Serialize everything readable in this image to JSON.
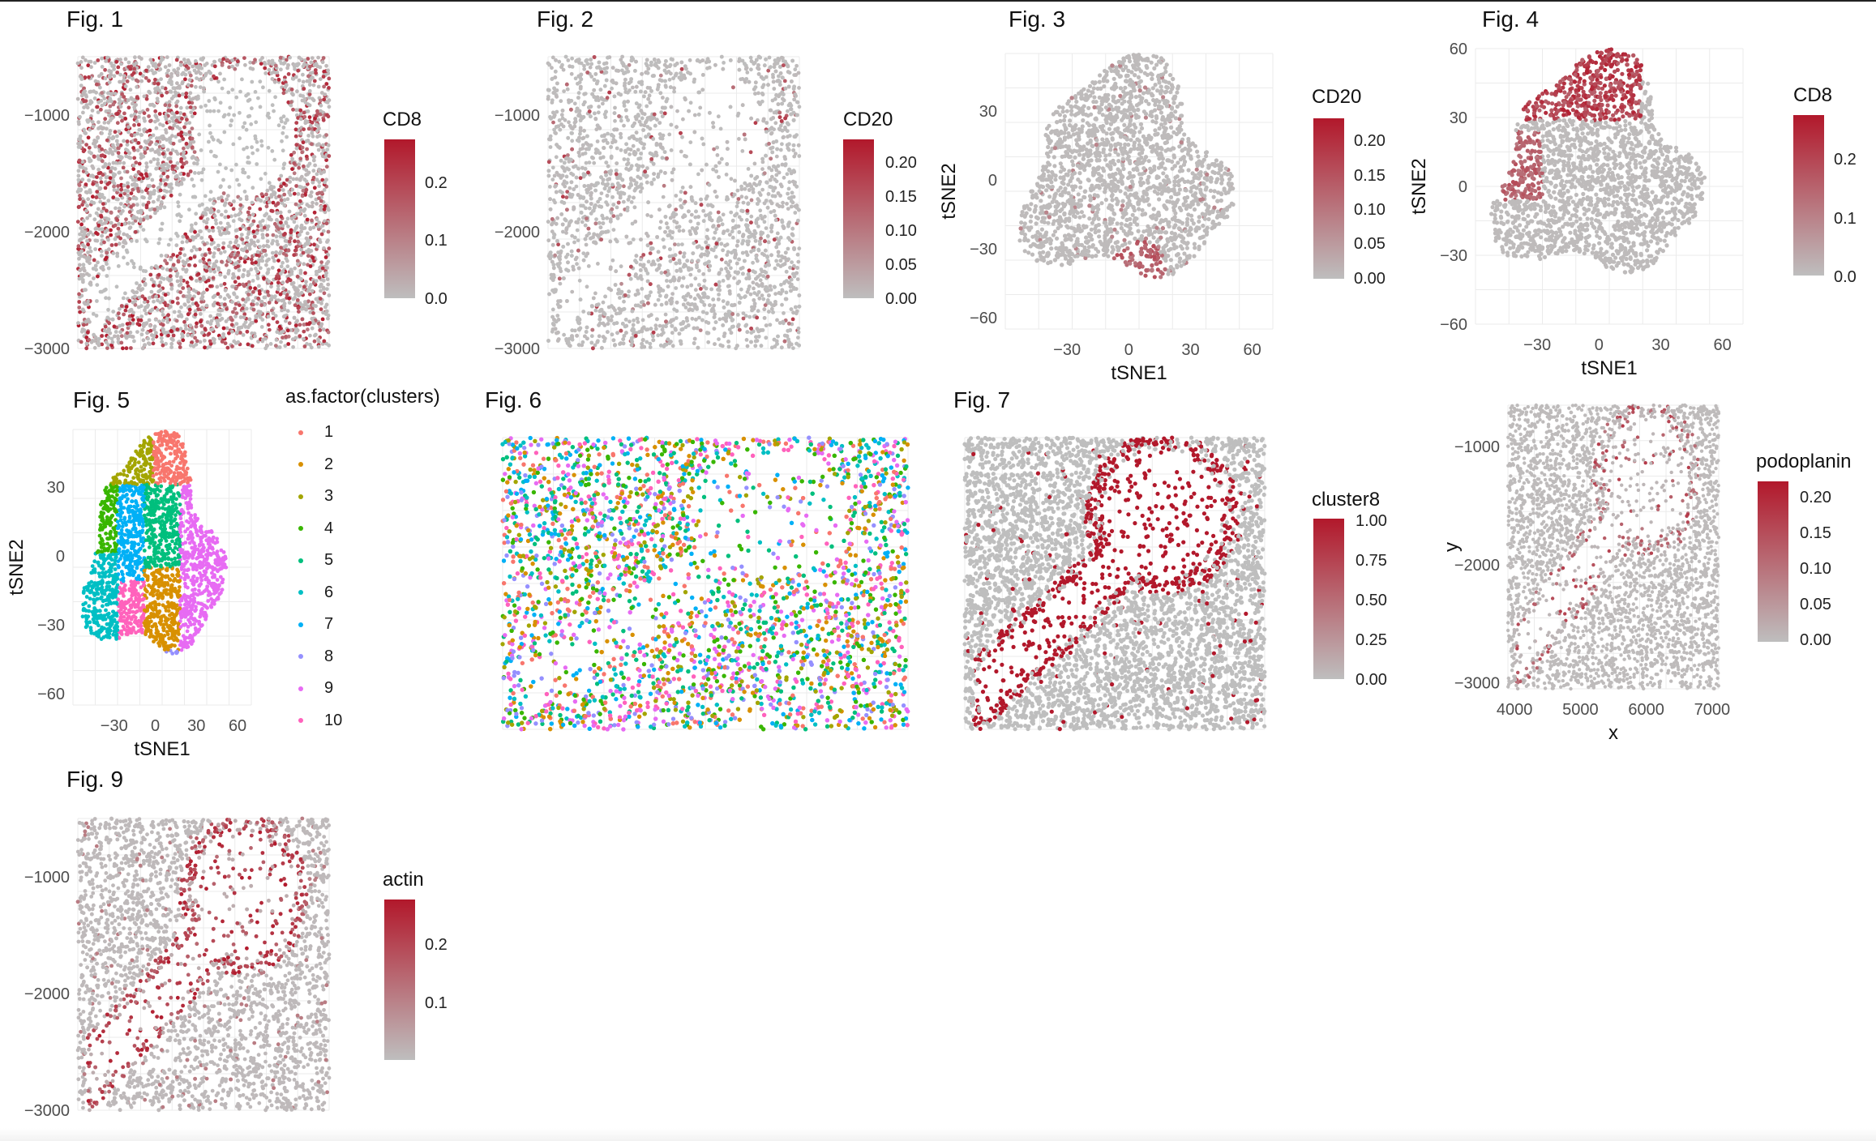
{
  "colors": {
    "low": "#bebebe",
    "high": "#b2182b",
    "grid": "#ebebeb",
    "axis_text": "#4d4d4d"
  },
  "cluster_palette": [
    "#F8766D",
    "#D89000",
    "#A3A500",
    "#39B600",
    "#00BF7D",
    "#00BFC4",
    "#00B0F6",
    "#9590FF",
    "#E76BF3",
    "#FF62BC"
  ],
  "chart_data": [
    {
      "id": "fig1",
      "label": "Fig. 1",
      "type": "scatter",
      "kind": "spatial",
      "fill": "CD8",
      "xlabel": "",
      "ylabel": "",
      "y_ticks": [
        "-1000",
        "-2000",
        "-3000"
      ],
      "x_ticks": [],
      "legend": {
        "title": "CD8",
        "ticks": [
          "0.2",
          "0.1",
          "0.0"
        ],
        "range": [
          0,
          0.28
        ]
      }
    },
    {
      "id": "fig2",
      "label": "Fig. 2",
      "type": "scatter",
      "kind": "spatial",
      "fill": "CD20",
      "xlabel": "",
      "ylabel": "",
      "y_ticks": [
        "-1000",
        "-2000",
        "-3000"
      ],
      "x_ticks": [],
      "legend": {
        "title": "CD20",
        "ticks": [
          "0.20",
          "0.15",
          "0.10",
          "0.05",
          "0.00"
        ],
        "range": [
          0,
          0.23
        ]
      }
    },
    {
      "id": "fig3",
      "label": "Fig. 3",
      "type": "scatter",
      "kind": "tsne",
      "fill": "CD20",
      "xlabel": "tSNE1",
      "ylabel": "tSNE2",
      "y_ticks": [
        "30",
        "0",
        "-30",
        "-60"
      ],
      "x_ticks": [
        "-30",
        "0",
        "30",
        "60"
      ],
      "legend": {
        "title": "CD20",
        "ticks": [
          "0.20",
          "0.15",
          "0.10",
          "0.05",
          "0.00"
        ],
        "range": [
          0,
          0.23
        ]
      }
    },
    {
      "id": "fig4",
      "label": "Fig. 4",
      "type": "scatter",
      "kind": "tsne",
      "fill": "CD8",
      "xlabel": "tSNE1",
      "ylabel": "tSNE2",
      "y_ticks": [
        "60",
        "30",
        "0",
        "-30",
        "-60"
      ],
      "x_ticks": [
        "-30",
        "0",
        "30",
        "60"
      ],
      "legend": {
        "title": "CD8",
        "ticks": [
          "0.2",
          "0.1",
          "0.0"
        ],
        "range": [
          0,
          0.28
        ]
      }
    },
    {
      "id": "fig5",
      "label": "Fig. 5",
      "type": "scatter",
      "kind": "tsne-clusters",
      "fill": "as.factor(clusters)",
      "xlabel": "tSNE1",
      "ylabel": "tSNE2",
      "y_ticks": [
        "30",
        "0",
        "-30",
        "-60"
      ],
      "x_ticks": [
        "-30",
        "0",
        "30",
        "60"
      ],
      "legend": {
        "title": "as.factor(clusters)",
        "items": [
          "1",
          "2",
          "3",
          "4",
          "5",
          "6",
          "7",
          "8",
          "9",
          "10"
        ]
      }
    },
    {
      "id": "fig6",
      "label": "Fig. 6",
      "type": "scatter",
      "kind": "spatial-clusters",
      "fill": "clusters",
      "xlabel": "",
      "ylabel": "",
      "y_ticks": [],
      "x_ticks": []
    },
    {
      "id": "fig7",
      "label": "Fig. 7",
      "type": "scatter",
      "kind": "spatial",
      "fill": "cluster8",
      "xlabel": "",
      "ylabel": "",
      "y_ticks": [],
      "x_ticks": [],
      "legend": {
        "title": "cluster8",
        "ticks": [
          "1.00",
          "0.75",
          "0.50",
          "0.25",
          "0.00"
        ],
        "range": [
          0,
          1
        ]
      }
    },
    {
      "id": "fig8",
      "label": "",
      "type": "scatter",
      "kind": "spatial",
      "fill": "podoplanin",
      "xlabel": "x",
      "ylabel": "y",
      "y_ticks": [
        "-1000",
        "-2000",
        "-3000"
      ],
      "x_ticks": [
        "4000",
        "5000",
        "6000",
        "7000"
      ],
      "legend": {
        "title": "podoplanin",
        "ticks": [
          "0.20",
          "0.15",
          "0.10",
          "0.05",
          "0.00"
        ],
        "range": [
          0,
          0.23
        ]
      }
    },
    {
      "id": "fig9",
      "label": "Fig. 9",
      "type": "scatter",
      "kind": "spatial",
      "fill": "actin",
      "xlabel": "",
      "ylabel": "",
      "y_ticks": [
        "-1000",
        "-2000",
        "-3000"
      ],
      "x_ticks": [],
      "legend": {
        "title": "actin",
        "ticks": [
          "0.2",
          "0.1"
        ],
        "range": [
          0,
          0.28
        ]
      }
    }
  ]
}
